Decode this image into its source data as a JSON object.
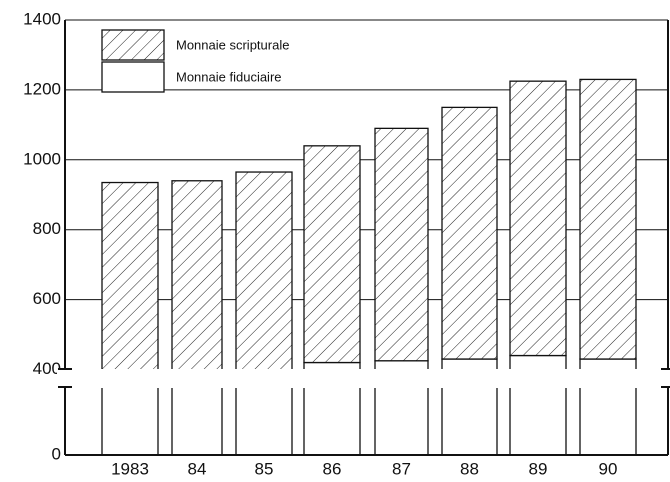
{
  "chart_data": {
    "type": "bar",
    "stacked": true,
    "categories": [
      "1983",
      "84",
      "85",
      "86",
      "87",
      "88",
      "89",
      "90"
    ],
    "series": [
      {
        "name": "Monnaie fiduciaire",
        "color": "#ffffff",
        "pattern": "none",
        "values": [
          390,
          385,
          390,
          420,
          425,
          430,
          440,
          430
        ]
      },
      {
        "name": "Monnaie scripturale",
        "color": "#ffffff",
        "pattern": "hatch",
        "values": [
          545,
          555,
          575,
          620,
          665,
          720,
          785,
          800
        ]
      }
    ],
    "ylim": [
      0,
      1400
    ],
    "axis_break": [
      100,
      370
    ],
    "yticks": [
      0,
      400,
      600,
      800,
      1000,
      1200,
      1400
    ],
    "grid": true
  }
}
